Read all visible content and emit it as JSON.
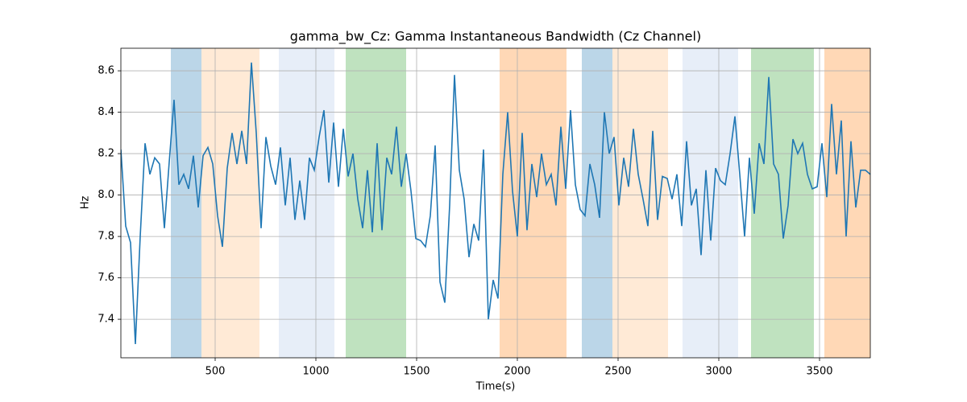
{
  "chart_data": {
    "type": "line",
    "title": "gamma_bw_Cz: Gamma Instantaneous Bandwidth (Cz Channel)",
    "x_label": "Time(s)",
    "y_label": "Hz",
    "xlim": [
      32,
      3752
    ],
    "ylim": [
      7.214,
      8.709
    ],
    "xticks": [
      500,
      1000,
      1500,
      2000,
      2500,
      3000,
      3500
    ],
    "yticks": [
      7.4,
      7.6,
      7.8,
      {
        "value": 8,
        "label": "8.0"
      },
      8.2,
      8.4,
      8.6
    ],
    "grid": true,
    "bands": [
      {
        "start": 280,
        "end": 432,
        "color": "#1f77b4"
      },
      {
        "start": 432,
        "end": 720,
        "color": "#ffbb78"
      },
      {
        "start": 816,
        "end": 1092,
        "color": "#aec7e8"
      },
      {
        "start": 1148,
        "end": 1448,
        "color": "#2ca02c"
      },
      {
        "start": 1912,
        "end": 2244,
        "color": "#ff7f0e"
      },
      {
        "start": 2320,
        "end": 2472,
        "color": "#1f77b4"
      },
      {
        "start": 2472,
        "end": 2748,
        "color": "#ffbb78"
      },
      {
        "start": 2820,
        "end": 3096,
        "color": "#aec7e8"
      },
      {
        "start": 3160,
        "end": 3472,
        "color": "#2ca02c"
      },
      {
        "start": 3524,
        "end": 3752,
        "color": "#ff7f0e"
      }
    ],
    "x": [
      32,
      56,
      80,
      104,
      128,
      152,
      176,
      200,
      224,
      248,
      272,
      296,
      320,
      344,
      368,
      392,
      416,
      440,
      464,
      488,
      512,
      536,
      560,
      584,
      608,
      632,
      656,
      680,
      704,
      728,
      752,
      776,
      800,
      824,
      848,
      872,
      896,
      920,
      944,
      968,
      992,
      1016,
      1040,
      1064,
      1088,
      1112,
      1136,
      1160,
      1184,
      1208,
      1232,
      1256,
      1280,
      1304,
      1328,
      1352,
      1376,
      1400,
      1424,
      1448,
      1472,
      1496,
      1520,
      1544,
      1568,
      1592,
      1616,
      1640,
      1664,
      1688,
      1712,
      1736,
      1760,
      1784,
      1808,
      1832,
      1856,
      1880,
      1904,
      1928,
      1952,
      1976,
      2000,
      2024,
      2048,
      2072,
      2096,
      2120,
      2144,
      2168,
      2192,
      2216,
      2240,
      2264,
      2288,
      2312,
      2336,
      2360,
      2384,
      2408,
      2432,
      2456,
      2480,
      2504,
      2528,
      2552,
      2576,
      2600,
      2624,
      2648,
      2672,
      2696,
      2720,
      2744,
      2768,
      2792,
      2816,
      2840,
      2864,
      2888,
      2912,
      2936,
      2960,
      2984,
      3008,
      3032,
      3056,
      3080,
      3104,
      3128,
      3152,
      3176,
      3200,
      3224,
      3248,
      3272,
      3296,
      3320,
      3344,
      3368,
      3392,
      3416,
      3440,
      3464,
      3488,
      3512,
      3536,
      3560,
      3584,
      3608,
      3632,
      3656,
      3680,
      3704,
      3728,
      3752
    ],
    "series": [
      {
        "color": "#1f77b4",
        "values": [
          8.22,
          7.85,
          7.77,
          7.28,
          7.8,
          8.25,
          8.1,
          8.18,
          8.15,
          7.84,
          8.16,
          8.46,
          8.05,
          8.1,
          8.03,
          8.19,
          7.94,
          8.19,
          8.23,
          8.15,
          7.9,
          7.75,
          8.13,
          8.3,
          8.15,
          8.31,
          8.15,
          8.64,
          8.3,
          7.84,
          8.28,
          8.14,
          8.05,
          8.23,
          7.95,
          8.18,
          7.88,
          8.07,
          7.88,
          8.18,
          8.12,
          8.28,
          8.41,
          8.06,
          8.35,
          8.04,
          8.32,
          8.09,
          8.2,
          7.98,
          7.84,
          8.12,
          7.82,
          8.25,
          7.83,
          8.18,
          8.1,
          8.33,
          8.04,
          8.2,
          8.02,
          7.79,
          7.78,
          7.75,
          7.9,
          8.24,
          7.58,
          7.48,
          7.95,
          8.58,
          8.12,
          7.98,
          7.7,
          7.86,
          7.78,
          8.22,
          7.4,
          7.59,
          7.5,
          8.1,
          8.4,
          8.02,
          7.8,
          8.3,
          7.83,
          8.15,
          7.99,
          8.2,
          8.05,
          8.1,
          7.95,
          8.33,
          8.03,
          8.41,
          8.05,
          7.93,
          7.9,
          8.15,
          8.05,
          7.89,
          8.4,
          8.2,
          8.28,
          7.95,
          8.18,
          8.04,
          8.32,
          8.1,
          7.98,
          7.85,
          8.31,
          7.88,
          8.09,
          8.08,
          7.98,
          8.1,
          7.85,
          8.26,
          7.95,
          8.03,
          7.71,
          8.12,
          7.78,
          8.13,
          8.07,
          8.05,
          8.2,
          8.38,
          8.1,
          7.8,
          8.18,
          7.91,
          8.25,
          8.15,
          8.57,
          8.15,
          8.1,
          7.79,
          7.95,
          8.27,
          8.2,
          8.25,
          8.1,
          8.03,
          8.04,
          8.25,
          7.99,
          8.44,
          8.1,
          8.36,
          7.8,
          8.26,
          7.94,
          8.12,
          8.12,
          8.1
        ]
      }
    ]
  }
}
